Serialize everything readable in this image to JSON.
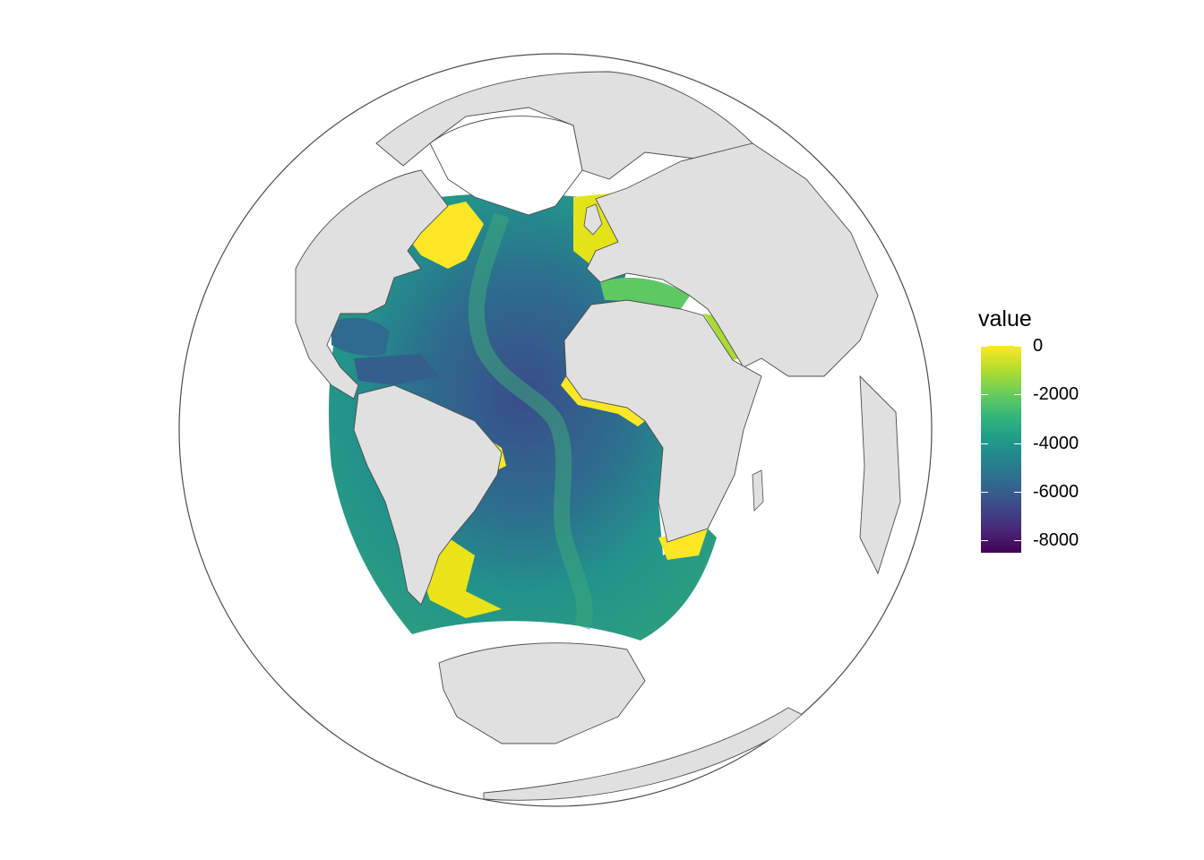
{
  "map": {
    "projection": "orthographic",
    "land_fill": "#e0e0e0",
    "border_color": "#4d4d4d",
    "colormap": "viridis"
  },
  "legend": {
    "title": "value",
    "min": -8500,
    "max": 0,
    "ticks": [
      {
        "value": 0,
        "label": "0"
      },
      {
        "value": -2000,
        "label": "-2000"
      },
      {
        "value": -4000,
        "label": "-4000"
      },
      {
        "value": -6000,
        "label": "-6000"
      },
      {
        "value": -8000,
        "label": "-8000"
      }
    ],
    "colors": [
      "#fde725",
      "#b5de2b",
      "#6ece58",
      "#35b779",
      "#1f9e89",
      "#26828e",
      "#31688e",
      "#3e4989",
      "#482878",
      "#440154"
    ]
  }
}
